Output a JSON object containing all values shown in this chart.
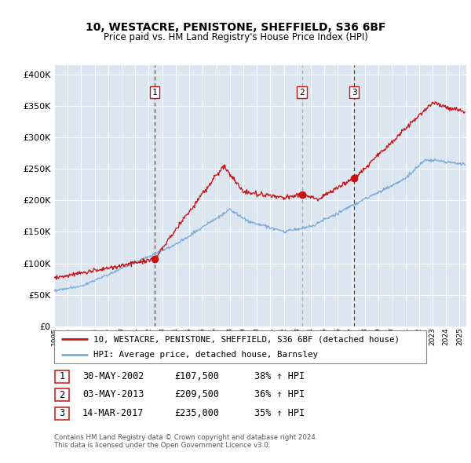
{
  "title": "10, WESTACRE, PENISTONE, SHEFFIELD, S36 6BF",
  "subtitle": "Price paid vs. HM Land Registry's House Price Index (HPI)",
  "ytick_values": [
    0,
    50000,
    100000,
    150000,
    200000,
    250000,
    300000,
    350000,
    400000
  ],
  "ylim": [
    0,
    415000
  ],
  "xlim_start": 1995.0,
  "xlim_end": 2025.5,
  "bg_color": "#dce6f1",
  "legend_label_red": "10, WESTACRE, PENISTONE, SHEFFIELD, S36 6BF (detached house)",
  "legend_label_blue": "HPI: Average price, detached house, Barnsley",
  "sales": [
    {
      "num": 1,
      "date": "30-MAY-2002",
      "price": 107500,
      "pct": "38%",
      "dir": "↑",
      "x": 2002.42,
      "vline_style": "red_dash"
    },
    {
      "num": 2,
      "date": "03-MAY-2013",
      "price": 209500,
      "pct": "36%",
      "dir": "↑",
      "x": 2013.33,
      "vline_style": "gray_dash"
    },
    {
      "num": 3,
      "date": "14-MAR-2017",
      "price": 235000,
      "pct": "35%",
      "dir": "↑",
      "x": 2017.2,
      "vline_style": "red_dash"
    }
  ],
  "footnote1": "Contains HM Land Registry data © Crown copyright and database right 2024.",
  "footnote2": "This data is licensed under the Open Government Licence v3.0.",
  "hpi_color": "#7aabdc",
  "sale_color": "#cc1111",
  "vline_red": "#cc1111",
  "vline_gray": "#aaaaaa"
}
